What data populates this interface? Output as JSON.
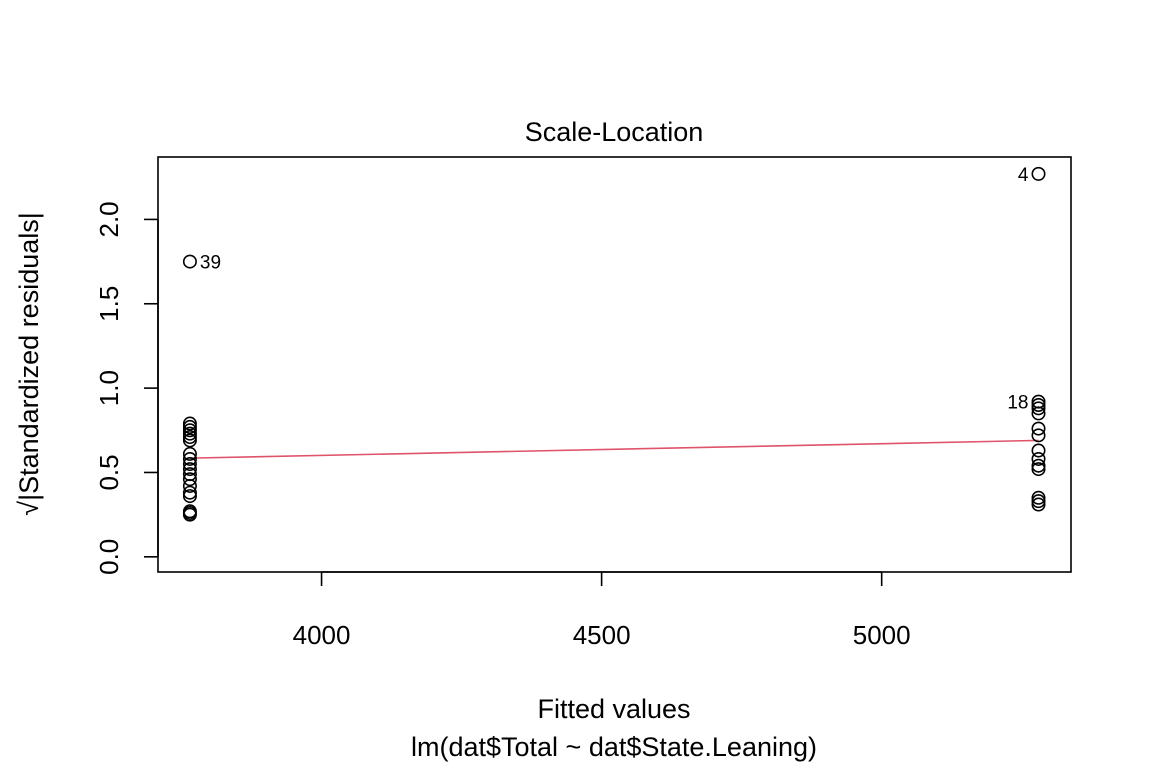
{
  "chart_data": {
    "type": "scatter",
    "title": "Scale-Location",
    "xlabel": "Fitted values",
    "subtitle": "lm(dat$Total ~ dat$State.Leaning)",
    "ylabel": "√|Standardized residuals|",
    "xlim": [
      3708,
      5338
    ],
    "ylim": [
      -0.09,
      2.37
    ],
    "x_ticks": [
      {
        "value": 4000,
        "label": "4000"
      },
      {
        "value": 4500,
        "label": "4500"
      },
      {
        "value": 5000,
        "label": "5000"
      }
    ],
    "y_ticks": [
      {
        "value": 0.0,
        "label": "0.0"
      },
      {
        "value": 0.5,
        "label": "0.5"
      },
      {
        "value": 1.0,
        "label": "1.0"
      },
      {
        "value": 1.5,
        "label": "1.5"
      },
      {
        "value": 2.0,
        "label": "2.0"
      }
    ],
    "points": [
      {
        "x": 3765,
        "y": 1.75,
        "label": "39",
        "label_side": "right"
      },
      {
        "x": 3765,
        "y": 0.79
      },
      {
        "x": 3765,
        "y": 0.77
      },
      {
        "x": 3765,
        "y": 0.75
      },
      {
        "x": 3765,
        "y": 0.73
      },
      {
        "x": 3765,
        "y": 0.71
      },
      {
        "x": 3765,
        "y": 0.69
      },
      {
        "x": 3765,
        "y": 0.61
      },
      {
        "x": 3765,
        "y": 0.58
      },
      {
        "x": 3765,
        "y": 0.55
      },
      {
        "x": 3765,
        "y": 0.52
      },
      {
        "x": 3765,
        "y": 0.49
      },
      {
        "x": 3765,
        "y": 0.46
      },
      {
        "x": 3765,
        "y": 0.42
      },
      {
        "x": 3765,
        "y": 0.38
      },
      {
        "x": 3765,
        "y": 0.36
      },
      {
        "x": 3765,
        "y": 0.27
      },
      {
        "x": 3765,
        "y": 0.26
      },
      {
        "x": 3765,
        "y": 0.25
      },
      {
        "x": 5280,
        "y": 2.27,
        "label": "4",
        "label_side": "left"
      },
      {
        "x": 5280,
        "y": 0.92,
        "label": "18",
        "label_side": "left"
      },
      {
        "x": 5280,
        "y": 0.9
      },
      {
        "x": 5280,
        "y": 0.88
      },
      {
        "x": 5280,
        "y": 0.85
      },
      {
        "x": 5280,
        "y": 0.76
      },
      {
        "x": 5280,
        "y": 0.72
      },
      {
        "x": 5280,
        "y": 0.63
      },
      {
        "x": 5280,
        "y": 0.58
      },
      {
        "x": 5280,
        "y": 0.54
      },
      {
        "x": 5280,
        "y": 0.52
      },
      {
        "x": 5280,
        "y": 0.35
      },
      {
        "x": 5280,
        "y": 0.33
      },
      {
        "x": 5280,
        "y": 0.31
      }
    ],
    "smooth_line": {
      "color": "#DF536B",
      "points": [
        [
          3765,
          0.585
        ],
        [
          5280,
          0.69
        ]
      ]
    },
    "grid": false,
    "legend": "none"
  }
}
